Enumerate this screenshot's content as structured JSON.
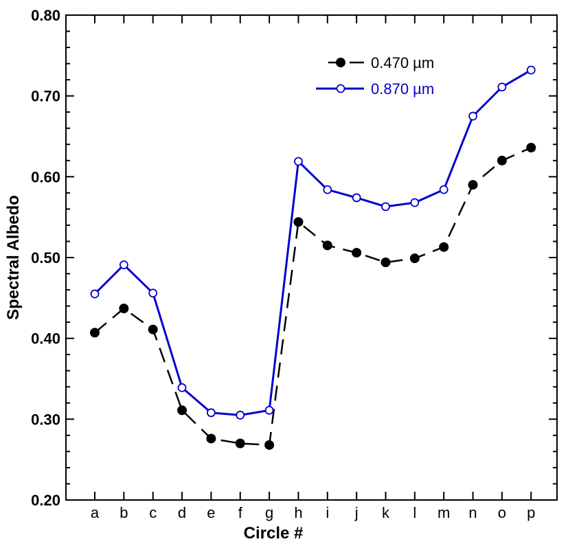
{
  "chart_data": {
    "type": "line",
    "title": "",
    "xlabel": "Circle #",
    "ylabel": "Spectral Albedo",
    "categories": [
      "a",
      "b",
      "c",
      "d",
      "e",
      "f",
      "g",
      "h",
      "i",
      "j",
      "k",
      "l",
      "m",
      "n",
      "o",
      "p"
    ],
    "ylim": [
      0.2,
      0.8
    ],
    "y_ticks": [
      "0.20",
      "0.30",
      "0.40",
      "0.50",
      "0.60",
      "0.70",
      "0.80"
    ],
    "grid": false,
    "legend_position": "top-right",
    "series": [
      {
        "name": "0.470 µm",
        "color": "#000000",
        "line_style": "dashed",
        "marker": "filled-circle",
        "values": [
          0.407,
          0.437,
          0.411,
          0.311,
          0.276,
          0.27,
          0.268,
          0.544,
          0.515,
          0.506,
          0.494,
          0.499,
          0.513,
          0.59,
          0.62,
          0.636
        ]
      },
      {
        "name": "0.870 µm",
        "color": "#0000cc",
        "line_style": "solid",
        "marker": "open-circle",
        "values": [
          0.455,
          0.491,
          0.456,
          0.339,
          0.308,
          0.305,
          0.311,
          0.619,
          0.584,
          0.574,
          0.563,
          0.568,
          0.584,
          0.675,
          0.711,
          0.732
        ]
      }
    ]
  }
}
